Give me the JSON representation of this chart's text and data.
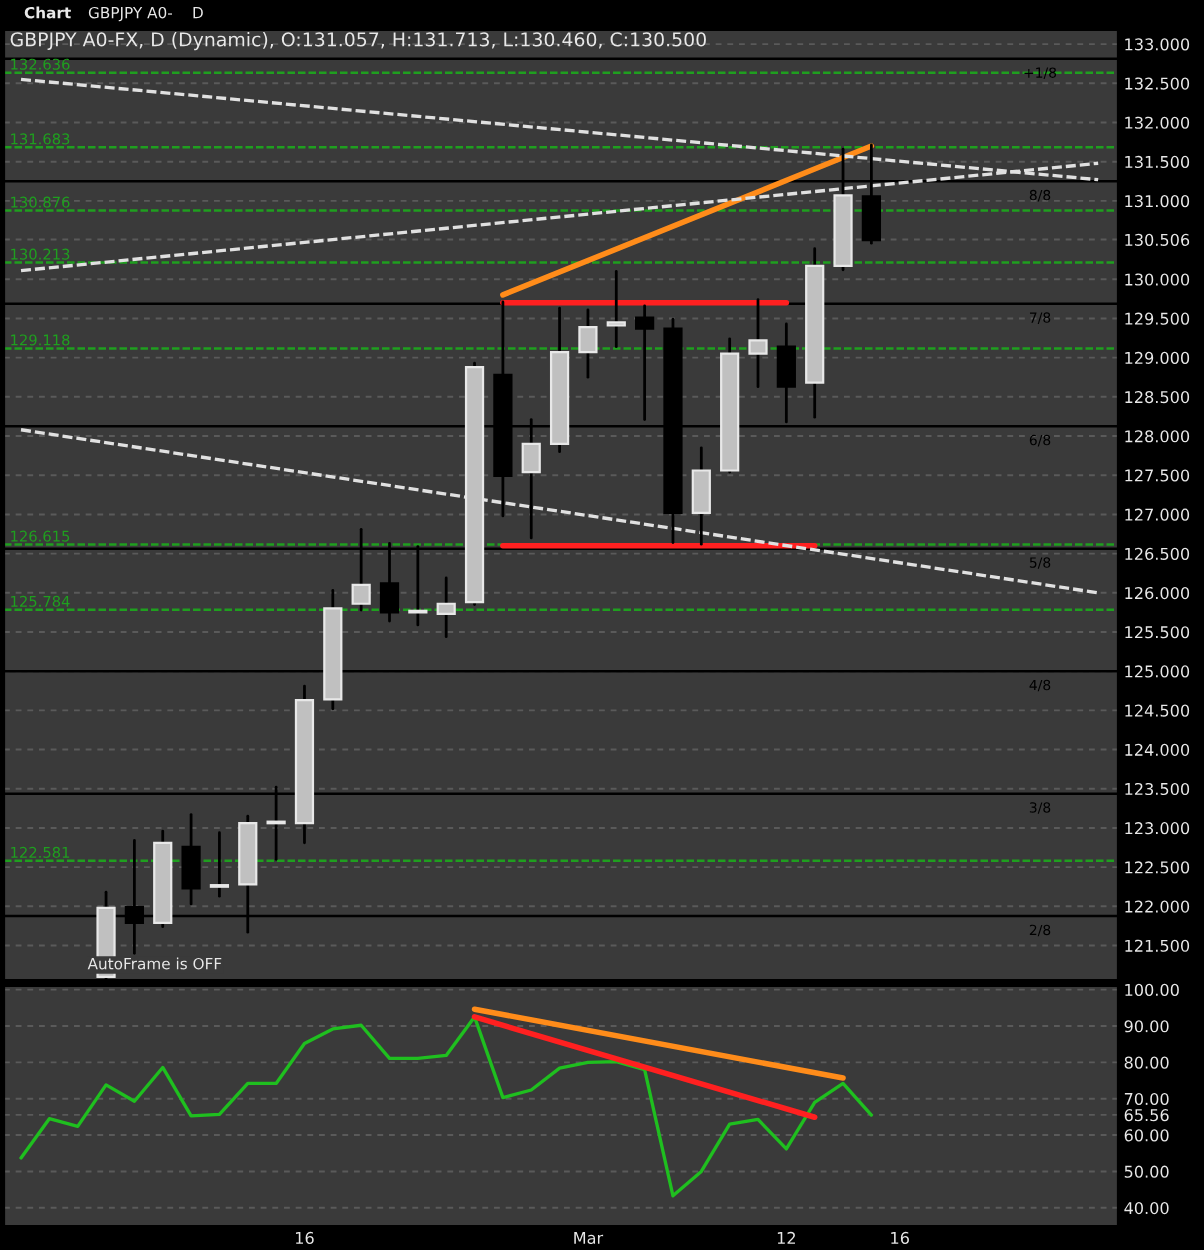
{
  "chart_data": [
    {
      "type": "candlestick",
      "title": "GBPJPY A0-FX, D (Dynamic), O:131.057, H:131.713, L:130.460, C:130.500",
      "annotations": [
        "Chart",
        "GBPJPY A0-",
        "D",
        "AutoFrame is OFF",
        {
          "text": "+1/8",
          "y": 132.8125
        },
        {
          "text": "8/8",
          "y": 131.25
        },
        {
          "text": "7/8",
          "y": 129.6875
        },
        {
          "text": "6/8",
          "y": 128.125
        },
        {
          "text": "5/8",
          "y": 126.5625
        },
        {
          "text": "4/8",
          "y": 125.0
        },
        {
          "text": "3/8",
          "y": 123.4375
        },
        {
          "text": "2/8",
          "y": 121.875
        }
      ],
      "categories": [
        null,
        null,
        null,
        null,
        null,
        null,
        null,
        null,
        null,
        null,
        null,
        null,
        null,
        null,
        null,
        null,
        null,
        null,
        null,
        null,
        null,
        null,
        null,
        null,
        null,
        null,
        null,
        null,
        null,
        null,
        null,
        null,
        null,
        null,
        null,
        null,
        null,
        null,
        null
      ],
      "ohlc": [
        null,
        null,
        null,
        [
          121.1,
          122.18,
          121.07,
          121.98
        ],
        [
          121.99,
          122.84,
          121.4,
          121.79
        ],
        [
          121.79,
          122.96,
          121.74,
          122.81
        ],
        [
          122.76,
          123.17,
          122.03,
          122.23
        ],
        [
          122.25,
          122.94,
          122.13,
          122.27
        ],
        [
          122.28,
          123.15,
          121.67,
          123.06
        ],
        [
          123.06,
          123.52,
          122.6,
          123.08
        ],
        [
          123.06,
          124.81,
          122.81,
          124.63
        ],
        [
          124.64,
          126.03,
          124.52,
          125.8
        ],
        [
          125.86,
          126.81,
          125.78,
          126.1
        ],
        [
          126.12,
          126.63,
          125.64,
          125.75
        ],
        [
          125.75,
          126.59,
          125.59,
          125.77
        ],
        [
          125.73,
          126.19,
          125.44,
          125.86
        ],
        [
          125.88,
          128.93,
          125.85,
          128.88
        ],
        [
          128.78,
          129.71,
          126.98,
          127.49
        ],
        [
          127.54,
          128.21,
          126.7,
          127.9
        ],
        [
          127.9,
          129.63,
          127.8,
          129.07
        ],
        [
          129.07,
          129.61,
          128.75,
          129.39
        ],
        [
          129.41,
          130.1,
          129.14,
          129.45
        ],
        [
          129.51,
          129.66,
          128.21,
          129.37
        ],
        [
          129.37,
          129.49,
          126.64,
          127.02
        ],
        [
          127.02,
          127.85,
          126.62,
          127.56
        ],
        [
          127.56,
          129.24,
          127.54,
          129.05
        ],
        [
          129.05,
          129.74,
          128.63,
          129.22
        ],
        [
          129.14,
          129.43,
          128.18,
          128.63
        ],
        [
          128.68,
          130.39,
          128.24,
          130.17
        ],
        [
          130.17,
          131.66,
          130.12,
          131.07
        ],
        [
          131.057,
          131.713,
          130.46,
          130.5
        ],
        null,
        null,
        null,
        null,
        null,
        null,
        null,
        null
      ],
      "colors": [
        null,
        null,
        null,
        "#c0c0c0",
        "#000000",
        "#c0c0c0",
        "#000000",
        "#c0c0c0",
        "#c0c0c0",
        "#c0c0c0",
        "#c0c0c0",
        "#c0c0c0",
        "#c0c0c0",
        "#000000",
        "#c0c0c0",
        "#c0c0c0",
        "#c0c0c0",
        "#000000",
        "#c0c0c0",
        "#c0c0c0",
        "#c0c0c0",
        "#c0c0c0",
        "#000000",
        "#000000",
        "#c0c0c0",
        "#c0c0c0",
        "#c0c0c0",
        "#000000",
        "#c0c0c0",
        "#c0c0c0",
        "#000000",
        null,
        null,
        null,
        null,
        null,
        null,
        null,
        null
      ],
      "series": [
        {
          "type": "line",
          "color": "#ff8c1a",
          "line_style": "solid",
          "values": [
            null,
            null,
            null,
            null,
            null,
            null,
            null,
            null,
            null,
            null,
            null,
            null,
            null,
            null,
            null,
            null,
            null,
            129.8,
            null,
            null,
            null,
            null,
            null,
            null,
            null,
            null,
            null,
            null,
            null,
            null,
            131.7,
            null,
            null,
            null,
            null,
            null,
            null,
            null,
            null
          ]
        },
        {
          "type": "line",
          "color": "#ff2020",
          "line_style": "solid",
          "values": [
            null,
            null,
            null,
            null,
            null,
            null,
            null,
            null,
            null,
            null,
            null,
            null,
            null,
            null,
            null,
            null,
            null,
            129.7,
            null,
            null,
            null,
            null,
            null,
            null,
            null,
            null,
            null,
            129.7,
            null,
            null,
            null,
            null,
            null,
            null,
            null,
            null,
            null,
            null,
            null
          ]
        },
        {
          "type": "line",
          "color": "#ff2020",
          "line_style": "solid",
          "values": [
            null,
            null,
            null,
            null,
            null,
            null,
            null,
            null,
            null,
            null,
            null,
            null,
            null,
            null,
            null,
            null,
            null,
            126.6,
            null,
            null,
            null,
            null,
            null,
            null,
            null,
            null,
            null,
            null,
            126.6,
            null,
            null,
            null,
            null,
            null,
            null,
            null,
            null,
            null,
            null
          ]
        },
        {
          "type": "line",
          "color": "#e0e0e0",
          "line_style": "dashed",
          "values": [
            132.55,
            null,
            null,
            null,
            null,
            null,
            null,
            null,
            null,
            null,
            null,
            null,
            null,
            null,
            null,
            null,
            null,
            null,
            null,
            null,
            null,
            null,
            null,
            null,
            null,
            null,
            null,
            null,
            null,
            null,
            null,
            null,
            null,
            null,
            null,
            null,
            null,
            null,
            131.27
          ]
        },
        {
          "type": "line",
          "color": "#e0e0e0",
          "line_style": "dashed",
          "values": [
            130.11,
            null,
            null,
            null,
            null,
            null,
            null,
            null,
            null,
            null,
            null,
            null,
            null,
            null,
            null,
            null,
            null,
            null,
            null,
            null,
            null,
            null,
            null,
            null,
            null,
            null,
            null,
            null,
            null,
            null,
            null,
            null,
            null,
            null,
            null,
            null,
            null,
            null,
            131.48
          ]
        },
        {
          "type": "line",
          "color": "#e0e0e0",
          "line_style": "dashed",
          "values": [
            128.08,
            null,
            null,
            null,
            null,
            null,
            null,
            null,
            null,
            null,
            null,
            null,
            null,
            null,
            null,
            null,
            null,
            null,
            null,
            null,
            null,
            null,
            null,
            null,
            null,
            null,
            null,
            null,
            null,
            null,
            null,
            null,
            null,
            null,
            null,
            null,
            null,
            null,
            126.0
          ]
        }
      ],
      "ref_lines": [
        {
          "axis": "y",
          "value": 132.636,
          "label": "132.636",
          "color": "#1f9f1f",
          "line_style": "dashed"
        },
        {
          "axis": "y",
          "value": 131.683,
          "label": "131.683",
          "color": "#1f9f1f",
          "line_style": "dashed"
        },
        {
          "axis": "y",
          "value": 130.876,
          "label": "130.876",
          "color": "#1f9f1f",
          "line_style": "dashed"
        },
        {
          "axis": "y",
          "value": 130.213,
          "label": "130.213",
          "color": "#1f9f1f",
          "line_style": "dashed"
        },
        {
          "axis": "y",
          "value": 129.118,
          "label": "129.118",
          "color": "#1f9f1f",
          "line_style": "dashed"
        },
        {
          "axis": "y",
          "value": 126.615,
          "label": "126.615",
          "color": "#1f9f1f",
          "line_style": "dashed"
        },
        {
          "axis": "y",
          "value": 125.784,
          "label": "125.784",
          "color": "#1f9f1f",
          "line_style": "dashed"
        },
        {
          "axis": "y",
          "value": 122.581,
          "label": "122.581",
          "color": "#1f9f1f",
          "line_style": "dashed"
        },
        {
          "axis": "y",
          "value": 132.8125,
          "color": "#000000",
          "line_style": "solid"
        },
        {
          "axis": "y",
          "value": 131.25,
          "color": "#000000",
          "line_style": "solid"
        },
        {
          "axis": "y",
          "value": 129.6875,
          "color": "#000000",
          "line_style": "solid"
        },
        {
          "axis": "y",
          "value": 128.125,
          "color": "#000000",
          "line_style": "solid"
        },
        {
          "axis": "y",
          "value": 126.5625,
          "color": "#000000",
          "line_style": "solid"
        },
        {
          "axis": "y",
          "value": 125.0,
          "color": "#000000",
          "line_style": "solid"
        },
        {
          "axis": "y",
          "value": 123.4375,
          "color": "#000000",
          "line_style": "solid"
        },
        {
          "axis": "y",
          "value": 121.875,
          "color": "#000000",
          "line_style": "solid"
        }
      ],
      "ylim": [
        121.06,
        133.18
      ],
      "yticks": [
        {
          "value": 121.5,
          "label": "121.500"
        },
        {
          "value": 122,
          "label": "122.000"
        },
        {
          "value": 122.5,
          "label": "122.500"
        },
        {
          "value": 123,
          "label": "123.000"
        },
        {
          "value": 123.5,
          "label": "123.500"
        },
        {
          "value": 124,
          "label": "124.000"
        },
        {
          "value": 124.5,
          "label": "124.500"
        },
        {
          "value": 125,
          "label": "125.000"
        },
        {
          "value": 125.5,
          "label": "125.500"
        },
        {
          "value": 126,
          "label": "126.000"
        },
        {
          "value": 126.5,
          "label": "126.500"
        },
        {
          "value": 127,
          "label": "127.000"
        },
        {
          "value": 127.5,
          "label": "127.500"
        },
        {
          "value": 128,
          "label": "128.000"
        },
        {
          "value": 128.5,
          "label": "128.500"
        },
        {
          "value": 129,
          "label": "129.000"
        },
        {
          "value": 129.5,
          "label": "129.500"
        },
        {
          "value": 130,
          "label": "130.000"
        },
        {
          "value": 130.506,
          "label": "130.506"
        },
        {
          "value": 131,
          "label": "131.000"
        },
        {
          "value": 131.5,
          "label": "131.500"
        },
        {
          "value": 132,
          "label": "132.000"
        },
        {
          "value": 132.5,
          "label": "132.500"
        },
        {
          "value": 133,
          "label": "133.000"
        }
      ],
      "grid": "y",
      "tick_labels": "y"
    },
    {
      "type": "line",
      "categories": [
        null,
        null,
        null,
        null,
        null,
        null,
        null,
        null,
        null,
        null,
        "16",
        null,
        null,
        null,
        null,
        null,
        null,
        null,
        null,
        null,
        "Mar",
        null,
        null,
        null,
        null,
        null,
        null,
        "12",
        null,
        null,
        null,
        "16",
        null,
        null,
        null,
        null,
        null,
        null,
        null
      ],
      "series": [
        {
          "color": "#1fbf1f",
          "line_style": "solid",
          "values": [
            53.7,
            64.5,
            62.4,
            73.8,
            69.3,
            78.6,
            65.3,
            65.7,
            74.2,
            74.2,
            85.2,
            89.2,
            90.2,
            81.1,
            81.1,
            81.9,
            92.5,
            70.3,
            72.4,
            78.4,
            80.0,
            80.2,
            78.0,
            43.3,
            50.0,
            63.0,
            64.3,
            56.2,
            69.0,
            74.2,
            65.5,
            null,
            null,
            null,
            null,
            null,
            null,
            null,
            null
          ]
        },
        {
          "color": "#ff8c1a",
          "line_style": "solid",
          "values": [
            null,
            null,
            null,
            null,
            null,
            null,
            null,
            null,
            null,
            null,
            null,
            null,
            null,
            null,
            null,
            null,
            94.6,
            null,
            null,
            null,
            null,
            null,
            null,
            null,
            null,
            null,
            null,
            null,
            null,
            75.7,
            null,
            null,
            null,
            null,
            null,
            null,
            null,
            null,
            null
          ]
        },
        {
          "color": "#ff2020",
          "line_style": "solid",
          "values": [
            null,
            null,
            null,
            null,
            null,
            null,
            null,
            null,
            null,
            null,
            null,
            null,
            null,
            null,
            null,
            null,
            92.5,
            null,
            null,
            null,
            null,
            null,
            null,
            null,
            null,
            null,
            null,
            null,
            64.9,
            null,
            null,
            null,
            null,
            null,
            null,
            null,
            null,
            null,
            null
          ]
        }
      ],
      "ylim": [
        35,
        101
      ],
      "yticks": [
        {
          "value": 40,
          "label": "40.00"
        },
        {
          "value": 50,
          "label": "50.00"
        },
        {
          "value": 60,
          "label": "60.00"
        },
        {
          "value": 65.56,
          "label": "65.56"
        },
        {
          "value": 70,
          "label": "70.00"
        },
        {
          "value": 80,
          "label": "80.00"
        },
        {
          "value": 90,
          "label": "90.00"
        },
        {
          "value": 100,
          "label": "100.00"
        }
      ],
      "grid": "y"
    }
  ]
}
